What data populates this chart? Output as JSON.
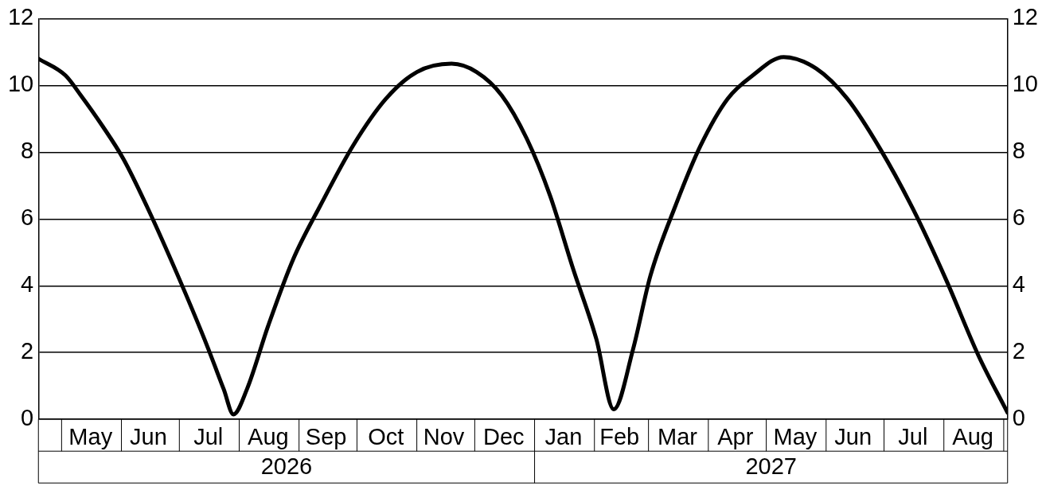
{
  "chart_data": {
    "type": "line",
    "x": [
      "2026-04-19",
      "2026-05-03",
      "2026-05-11",
      "2026-05-22",
      "2026-06-02",
      "2026-06-14",
      "2026-07-01",
      "2026-07-14",
      "2026-07-24",
      "2026-07-29",
      "2026-08-05",
      "2026-08-16",
      "2026-08-29",
      "2026-09-12",
      "2026-09-29",
      "2026-10-16",
      "2026-11-01",
      "2026-11-19",
      "2026-12-02",
      "2026-12-15",
      "2026-12-28",
      "2027-01-09",
      "2027-01-21",
      "2027-02-02",
      "2027-02-11",
      "2027-02-21",
      "2027-03-02",
      "2027-03-15",
      "2027-03-28",
      "2027-04-11",
      "2027-04-24",
      "2027-05-10",
      "2027-05-27",
      "2027-06-12",
      "2027-06-29",
      "2027-07-16",
      "2027-08-02",
      "2027-08-19",
      "2027-09-03"
    ],
    "series": [
      {
        "color": "#000000",
        "values": [
          10.8,
          10.3,
          9.7,
          8.8,
          7.8,
          6.4,
          4.2,
          2.4,
          0.9,
          0.15,
          0.9,
          2.8,
          4.8,
          6.4,
          8.2,
          9.6,
          10.4,
          10.65,
          10.4,
          9.7,
          8.4,
          6.7,
          4.5,
          2.4,
          0.3,
          2.1,
          4.3,
          6.4,
          8.2,
          9.6,
          10.3,
          10.85,
          10.5,
          9.6,
          8.1,
          6.3,
          4.2,
          1.9,
          0.2
        ]
      }
    ],
    "xlim": [
      "2026-04-19",
      "2027-09-03"
    ],
    "xticks": [
      {
        "value": "2026-05-16",
        "label": "May"
      },
      {
        "value": "2026-06-15",
        "label": "Jun"
      },
      {
        "value": "2026-07-16",
        "label": "Jul"
      },
      {
        "value": "2026-08-16",
        "label": "Aug"
      },
      {
        "value": "2026-09-15",
        "label": "Sep"
      },
      {
        "value": "2026-10-16",
        "label": "Oct"
      },
      {
        "value": "2026-11-15",
        "label": "Nov"
      },
      {
        "value": "2026-12-16",
        "label": "Dec"
      },
      {
        "value": "2027-01-16",
        "label": "Jan"
      },
      {
        "value": "2027-02-14",
        "label": "Feb"
      },
      {
        "value": "2027-03-16",
        "label": "Mar"
      },
      {
        "value": "2027-04-15",
        "label": "Apr"
      },
      {
        "value": "2027-05-16",
        "label": "May"
      },
      {
        "value": "2027-06-15",
        "label": "Jun"
      },
      {
        "value": "2027-07-16",
        "label": "Jul"
      },
      {
        "value": "2027-08-16",
        "label": "Aug"
      }
    ],
    "ylim": [
      0,
      12
    ],
    "yticks": [
      0,
      2,
      4,
      6,
      8,
      10,
      12
    ],
    "y2lim": [
      0,
      12
    ],
    "y2ticks": [
      0,
      2,
      4,
      6,
      8,
      10,
      12
    ],
    "annotations": [
      "2026",
      "2027"
    ],
    "grid": "y",
    "legend": false,
    "marker": "none",
    "line_style": "solid"
  }
}
